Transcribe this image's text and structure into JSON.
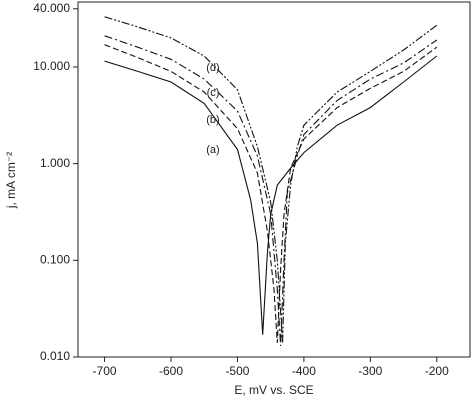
{
  "chart_data": {
    "type": "line",
    "xlabel": "E, mV vs. SCE",
    "ylabel": "j, mA cm⁻²",
    "yscale": "log",
    "xlim": [
      -740,
      -150
    ],
    "xticks": [
      -700,
      -600,
      -500,
      -400,
      -300,
      -200
    ],
    "ylim": [
      0.01,
      47
    ],
    "yticks": [
      {
        "value": 0.01,
        "label": "0.010"
      },
      {
        "value": 0.1,
        "label": "0.100"
      },
      {
        "value": 1,
        "label": "1.000"
      },
      {
        "value": 10,
        "label": "10.000"
      },
      {
        "value": 40,
        "label": "40.000"
      }
    ],
    "series": [
      {
        "name": "(a)",
        "color": "#111111",
        "linestyle": "solid",
        "x": [
          -700,
          -650,
          -600,
          -550,
          -500,
          -480,
          -470,
          -462,
          -455,
          -450,
          -440,
          -420,
          -400,
          -350,
          -300,
          -250,
          -200
        ],
        "values": [
          11.5,
          9,
          7,
          4.2,
          1.4,
          0.42,
          0.15,
          0.017,
          0.12,
          0.3,
          0.6,
          0.9,
          1.3,
          2.5,
          3.8,
          7,
          13
        ]
      },
      {
        "name": "(b)",
        "color": "#111111",
        "linestyle": "dashed",
        "x": [
          -700,
          -650,
          -600,
          -550,
          -500,
          -470,
          -455,
          -445,
          -440,
          -435,
          -430,
          -420,
          -400,
          -350,
          -300,
          -250,
          -200
        ],
        "values": [
          17,
          12.5,
          9,
          5.5,
          2.3,
          0.8,
          0.2,
          0.05,
          0.014,
          0.08,
          0.3,
          0.9,
          1.8,
          3.8,
          6,
          9,
          16
        ]
      },
      {
        "name": "(c)",
        "color": "#111111",
        "linestyle": "dashdot",
        "x": [
          -700,
          -650,
          -600,
          -550,
          -500,
          -470,
          -450,
          -440,
          -435,
          -430,
          -425,
          -410,
          -400,
          -350,
          -300,
          -250,
          -200
        ],
        "values": [
          21,
          16,
          12,
          7.5,
          3.5,
          1.2,
          0.3,
          0.05,
          0.013,
          0.1,
          0.5,
          1.2,
          2,
          4.5,
          7.5,
          11,
          19
        ]
      },
      {
        "name": "(d)",
        "color": "#111111",
        "linestyle": "dashdotdot",
        "x": [
          -700,
          -650,
          -600,
          -550,
          -500,
          -470,
          -450,
          -440,
          -432,
          -428,
          -420,
          -410,
          -400,
          -350,
          -300,
          -250,
          -200
        ],
        "values": [
          33,
          26,
          20,
          13,
          5.8,
          1.5,
          0.4,
          0.1,
          0.014,
          0.15,
          0.6,
          1.5,
          2.5,
          5.5,
          9,
          15,
          27
        ]
      }
    ]
  }
}
